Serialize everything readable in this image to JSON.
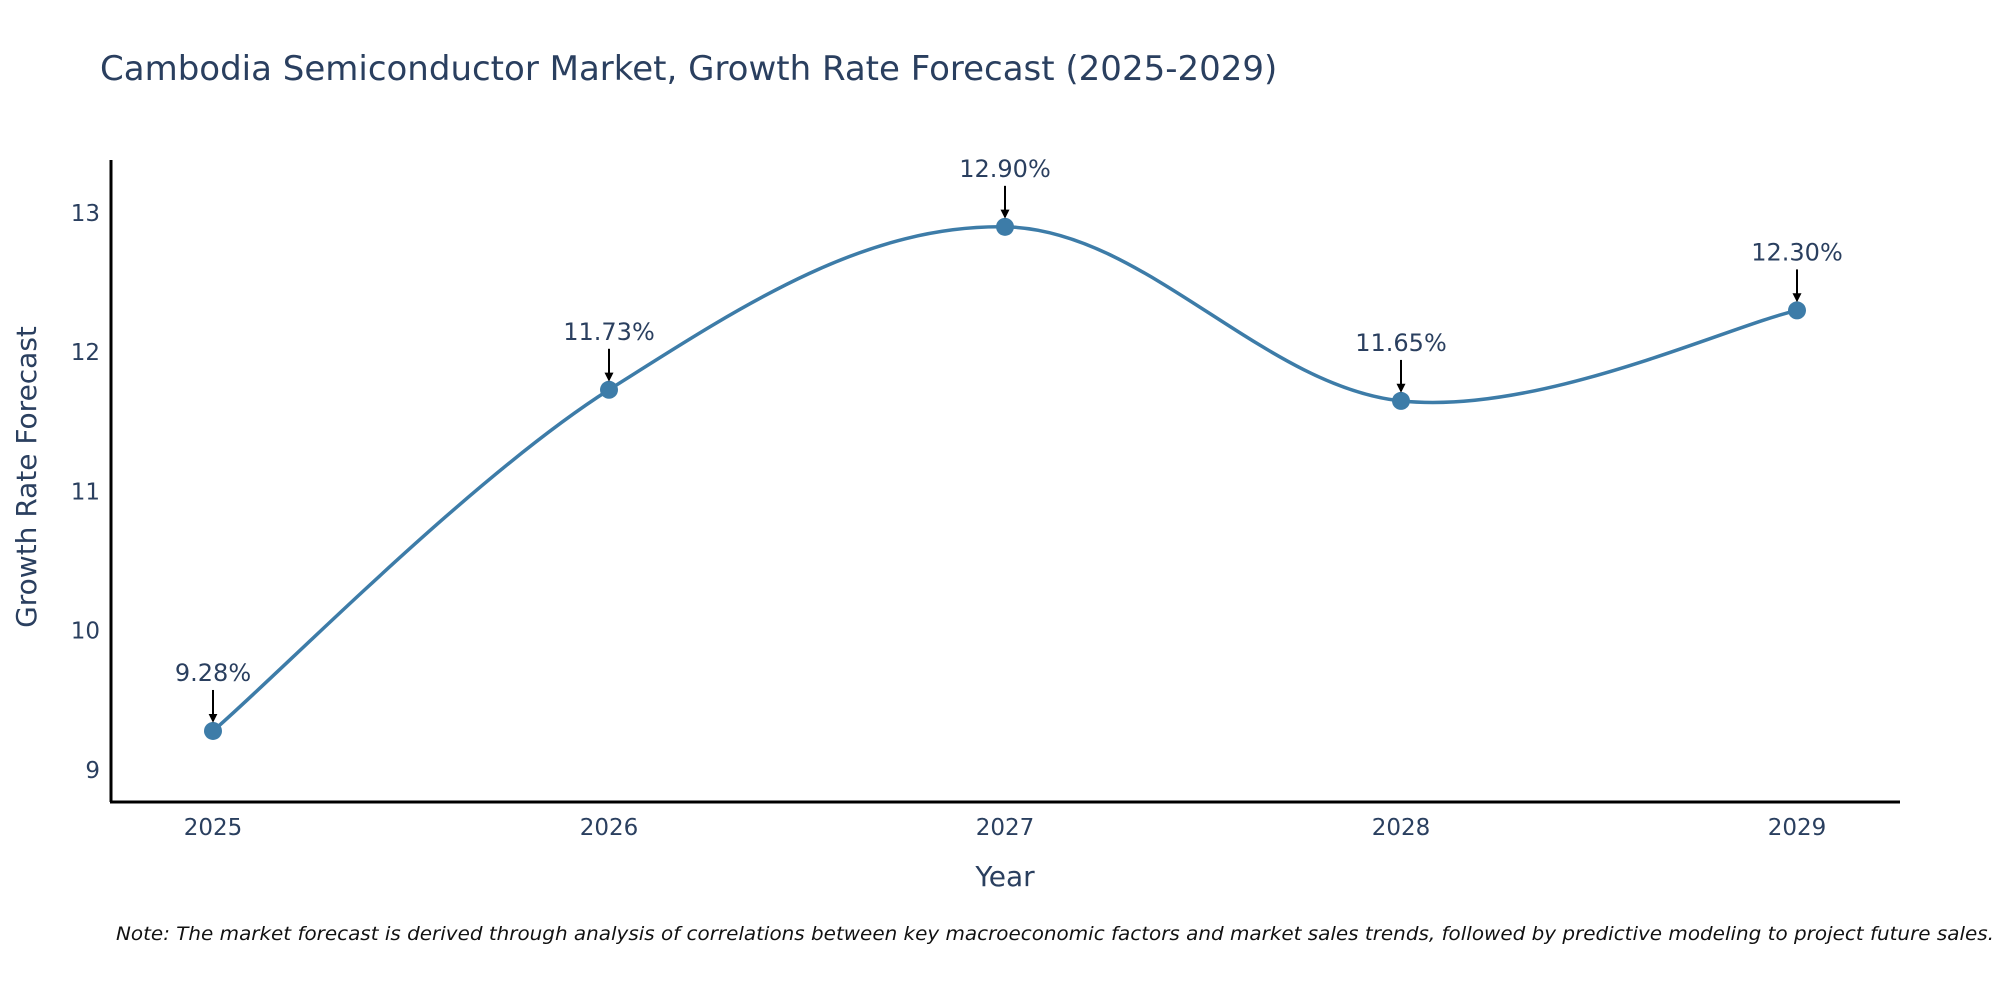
{
  "chart_data": {
    "type": "line",
    "title": "Cambodia Semiconductor Market, Growth Rate Forecast (2025-2029)",
    "xlabel": "Year",
    "ylabel": "Growth Rate Forecast",
    "categories": [
      "2025",
      "2026",
      "2027",
      "2028",
      "2029"
    ],
    "series": [
      {
        "name": "Growth Rate Forecast",
        "values": [
          9.28,
          11.73,
          12.9,
          11.65,
          12.3
        ],
        "labels": [
          "9.28%",
          "11.73%",
          "12.90%",
          "11.65%",
          "12.30%"
        ],
        "color": "#3d7ca8"
      }
    ],
    "ylim": [
      8.77,
      13.38
    ],
    "yticks": [
      9,
      10,
      11,
      12,
      13
    ],
    "ytick_labels": [
      "9",
      "10",
      "11",
      "12",
      "13"
    ],
    "grid": false,
    "legend": "none",
    "line_shape": "spline",
    "annotation_arrows": true,
    "note": "Note: The market forecast is derived through analysis of correlations between key macroeconomic factors and market sales trends, followed by predictive modeling to project future sales."
  }
}
